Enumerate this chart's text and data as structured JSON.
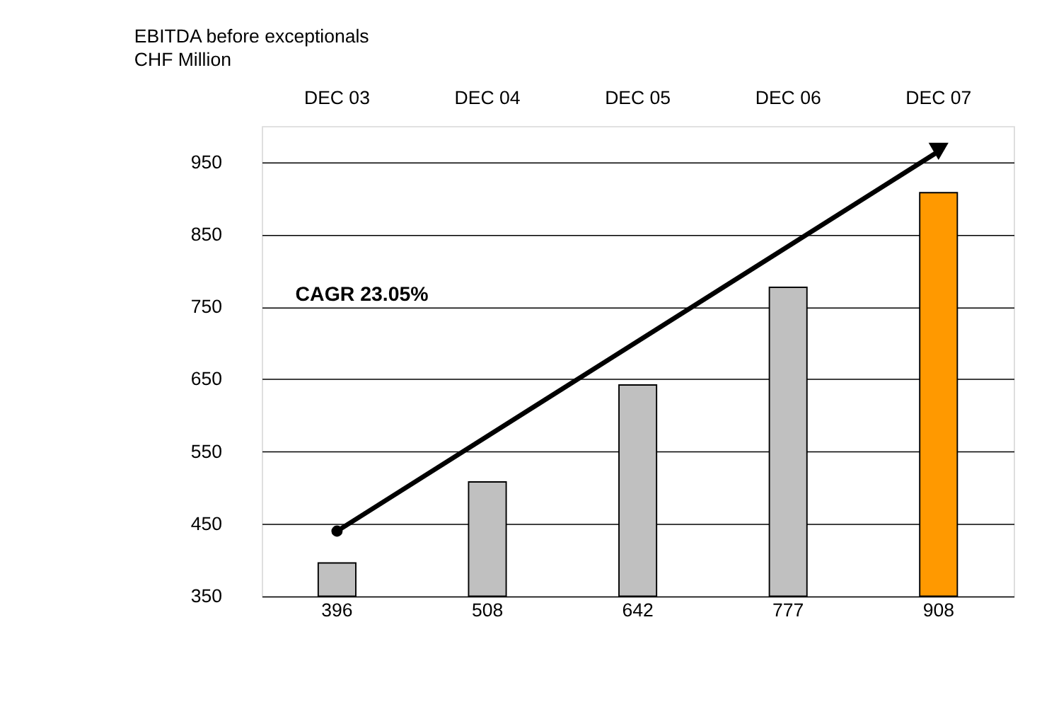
{
  "chart_data": {
    "type": "bar",
    "title": "EBITDA before exceptionals",
    "subtitle": "CHF Million",
    "categories": [
      "DEC 03",
      "DEC 04",
      "DEC 05",
      "DEC 06",
      "DEC 07"
    ],
    "series": [
      {
        "colors": [
          "#c0c0c0",
          "#c0c0c0",
          "#c0c0c0",
          "#c0c0c0",
          "#ff9900"
        ],
        "values": [
          396,
          508,
          642,
          777,
          908
        ],
        "value_labels": [
          "396",
          "508",
          "642",
          "777",
          "908"
        ]
      },
      {
        "type": "line",
        "color": "#000000",
        "x": [
          "DEC 03",
          "DEC 07"
        ],
        "values": [
          440,
          965
        ],
        "marker": "circle"
      }
    ],
    "annotations": [
      "CAGR 23.05%"
    ],
    "ylim": [
      350,
      1000
    ],
    "yticks": [
      350,
      450,
      550,
      650,
      750,
      850,
      950
    ],
    "grid": "y"
  }
}
